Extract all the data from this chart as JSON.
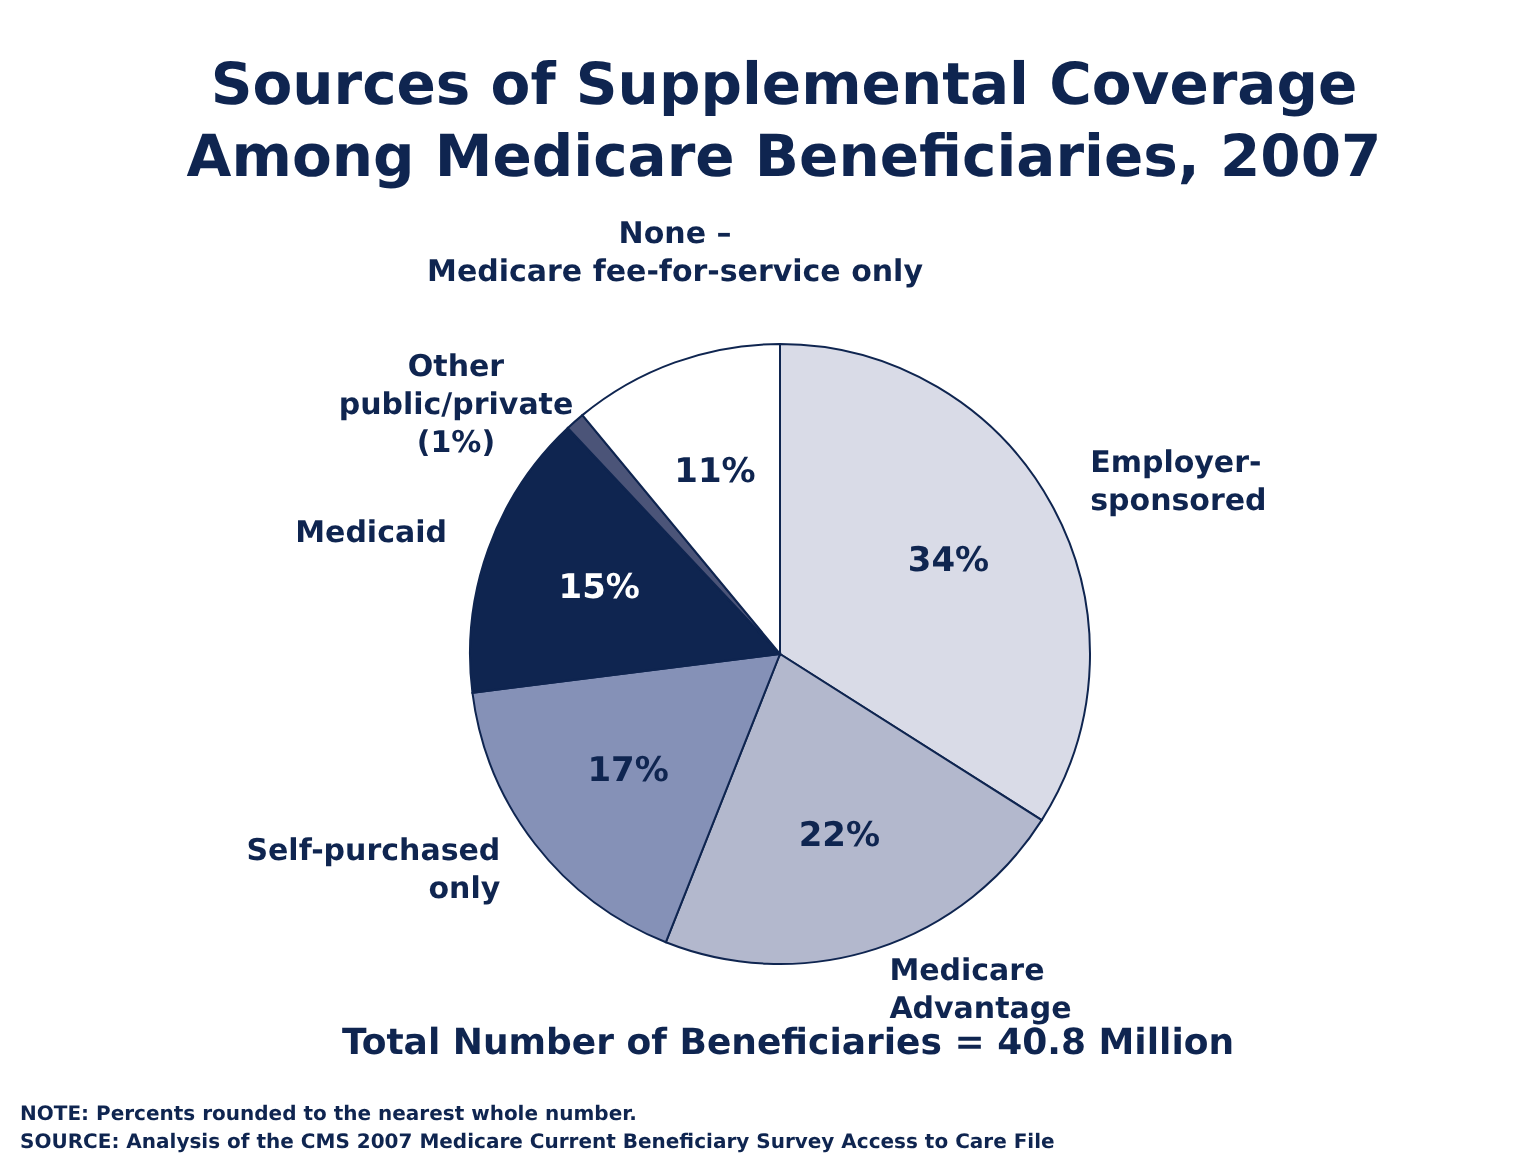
{
  "chart_data": {
    "type": "pie",
    "title": "Sources of Supplemental Coverage\nAmong Medicare Beneficiaries, 2007",
    "categories": [
      "Employer-\nsponsored",
      "Medicare\nAdvantage",
      "Self-purchased\nonly",
      "Medicaid",
      "Other\npublic/private\n(1%)",
      "None –\nMedicare fee-for-service only"
    ],
    "values": [
      34,
      22,
      17,
      15,
      1,
      11
    ],
    "value_labels": [
      "34%",
      "22%",
      "17%",
      "15%",
      null,
      "11%"
    ],
    "colors": [
      "#d9dbe7",
      "#b3b8cd",
      "#8591b7",
      "#0f2550",
      "#4b5478",
      "#ffffff"
    ],
    "annotations": [
      "Total Number of Beneficiaries = 40.8 Million",
      "NOTE:  Percents rounded to the nearest whole number.",
      "SOURCE:  Analysis of the CMS 2007 Medicare Current Beneficiary Survey Access to Care File"
    ]
  }
}
